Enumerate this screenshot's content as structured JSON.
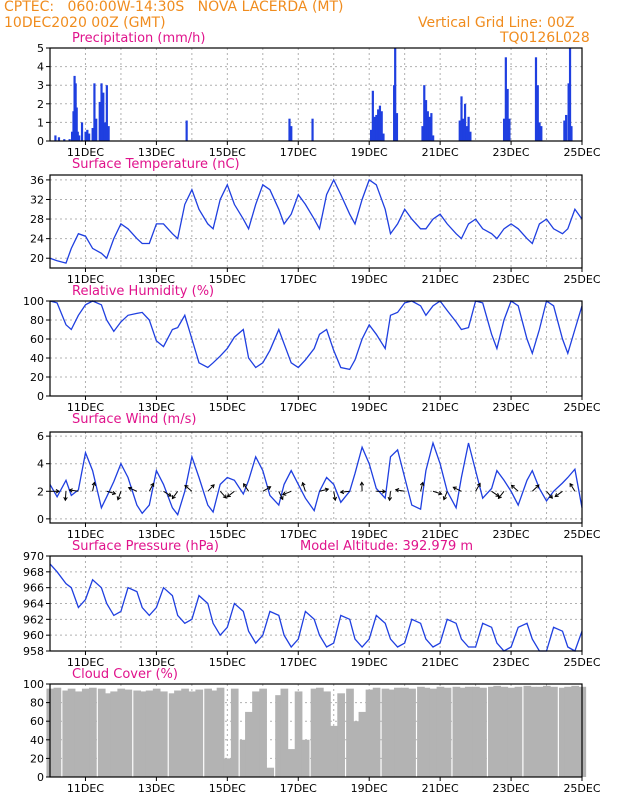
{
  "header": {
    "line1_left": "CPTEC:   060:00W-14:30S   NOVA LACERDA (MT)",
    "line2_left": "10DEC2020 00Z (GMT)",
    "line2_right": "Vertical Grid Line: 00Z",
    "line3_right": "TQ0126L028"
  },
  "colors": {
    "header": "#f08c1e",
    "title": "#e0138c",
    "series": "#1f3fe0",
    "cloud": "#b3b3b3",
    "arrow": "#000000"
  },
  "chart_data": [
    {
      "type": "bar",
      "title": "Precipitation (mm/h)",
      "x_start": "10DEC2020",
      "xlim_days": [
        0,
        15
      ],
      "ylim": [
        0,
        5
      ],
      "yticks": [
        0,
        1,
        2,
        3,
        4,
        5
      ],
      "xticks": [
        "11DEC",
        "13DEC",
        "15DEC",
        "17DEC",
        "19DEC",
        "21DEC",
        "23DEC",
        "25DEC"
      ],
      "bars": [
        [
          0.15,
          0.3
        ],
        [
          0.25,
          0.2
        ],
        [
          0.4,
          0.1
        ],
        [
          0.55,
          0.1
        ],
        [
          0.62,
          0.5
        ],
        [
          0.66,
          1.6
        ],
        [
          0.69,
          3.5
        ],
        [
          0.72,
          3.1
        ],
        [
          0.75,
          1.8
        ],
        [
          0.78,
          0.5
        ],
        [
          0.82,
          0.3
        ],
        [
          0.9,
          1.0
        ],
        [
          1.0,
          0.5
        ],
        [
          1.05,
          0.6
        ],
        [
          1.1,
          0.4
        ],
        [
          1.2,
          0.7
        ],
        [
          1.25,
          3.1
        ],
        [
          1.3,
          1.2
        ],
        [
          1.4,
          2.1
        ],
        [
          1.45,
          3.1
        ],
        [
          1.5,
          2.6
        ],
        [
          1.55,
          1.0
        ],
        [
          1.6,
          3.0
        ],
        [
          1.65,
          0.8
        ],
        [
          3.85,
          1.1
        ],
        [
          6.75,
          1.2
        ],
        [
          6.8,
          0.8
        ],
        [
          7.4,
          1.2
        ],
        [
          9.05,
          0.6
        ],
        [
          9.1,
          2.7
        ],
        [
          9.15,
          1.3
        ],
        [
          9.2,
          1.4
        ],
        [
          9.25,
          1.7
        ],
        [
          9.3,
          1.9
        ],
        [
          9.35,
          1.6
        ],
        [
          9.4,
          0.4
        ],
        [
          9.7,
          3.0
        ],
        [
          9.73,
          5.0
        ],
        [
          9.78,
          1.5
        ],
        [
          10.5,
          0.8
        ],
        [
          10.55,
          3.0
        ],
        [
          10.6,
          2.2
        ],
        [
          10.65,
          1.6
        ],
        [
          10.7,
          1.3
        ],
        [
          10.75,
          1.5
        ],
        [
          10.8,
          0.3
        ],
        [
          11.55,
          1.1
        ],
        [
          11.6,
          2.4
        ],
        [
          11.65,
          1.2
        ],
        [
          11.7,
          2.0
        ],
        [
          11.75,
          0.8
        ],
        [
          11.8,
          1.3
        ],
        [
          11.85,
          0.5
        ],
        [
          12.8,
          1.2
        ],
        [
          12.85,
          4.5
        ],
        [
          12.9,
          2.8
        ],
        [
          12.95,
          1.2
        ],
        [
          13.7,
          4.5
        ],
        [
          13.75,
          3.0
        ],
        [
          13.8,
          1.0
        ],
        [
          13.85,
          0.8
        ],
        [
          14.5,
          1.1
        ],
        [
          14.55,
          1.4
        ],
        [
          14.62,
          3.1
        ],
        [
          14.66,
          5.0
        ],
        [
          14.7,
          0.8
        ]
      ]
    },
    {
      "type": "line",
      "title": "Surface Temperature (nC)",
      "x_start": "10DEC2020",
      "xlim_days": [
        0,
        15
      ],
      "ylim": [
        18,
        37
      ],
      "yticks": [
        20,
        24,
        28,
        32,
        36
      ],
      "xticks": [
        "11DEC",
        "13DEC",
        "15DEC",
        "17DEC",
        "19DEC",
        "21DEC",
        "23DEC",
        "25DEC"
      ],
      "x": [
        0,
        0.2,
        0.45,
        0.6,
        0.8,
        1.0,
        1.2,
        1.45,
        1.6,
        1.8,
        2.0,
        2.2,
        2.45,
        2.6,
        2.8,
        3.0,
        3.2,
        3.45,
        3.6,
        3.8,
        4.0,
        4.2,
        4.45,
        4.6,
        4.8,
        5.0,
        5.2,
        5.45,
        5.6,
        5.8,
        6.0,
        6.2,
        6.45,
        6.6,
        6.8,
        7.0,
        7.2,
        7.45,
        7.6,
        7.8,
        8.0,
        8.2,
        8.45,
        8.6,
        8.8,
        9.0,
        9.2,
        9.45,
        9.6,
        9.8,
        10.0,
        10.2,
        10.45,
        10.6,
        10.8,
        11.0,
        11.2,
        11.45,
        11.6,
        11.8,
        12.0,
        12.2,
        12.45,
        12.6,
        12.8,
        13.0,
        13.2,
        13.45,
        13.6,
        13.8,
        14.0,
        14.2,
        14.45,
        14.6,
        14.8,
        15.0
      ],
      "y": [
        20,
        19.5,
        19,
        22,
        25,
        24.5,
        22,
        21,
        20,
        24,
        27,
        26,
        24,
        23,
        23,
        27,
        27,
        25,
        24,
        31,
        34,
        30,
        27,
        26,
        32,
        35,
        31,
        28,
        26,
        31,
        35,
        34,
        30,
        27,
        29,
        33,
        31,
        28,
        26,
        33,
        36,
        33,
        29,
        27,
        32,
        36,
        35,
        30,
        25,
        27,
        30,
        28,
        26,
        26,
        28,
        29,
        27,
        25,
        24,
        27,
        28,
        26,
        25,
        24,
        26,
        27,
        26,
        24,
        23,
        27,
        28,
        26,
        25,
        26,
        30,
        28
      ]
    },
    {
      "type": "line",
      "title": "Relative Humidity (%)",
      "x_start": "10DEC2020",
      "xlim_days": [
        0,
        15
      ],
      "ylim": [
        0,
        100
      ],
      "yticks": [
        0,
        20,
        40,
        60,
        80,
        100
      ],
      "xticks": [
        "11DEC",
        "13DEC",
        "15DEC",
        "17DEC",
        "19DEC",
        "21DEC",
        "23DEC",
        "25DEC"
      ],
      "x": [
        0,
        0.2,
        0.45,
        0.6,
        0.8,
        1.0,
        1.2,
        1.45,
        1.6,
        1.8,
        2.0,
        2.2,
        2.45,
        2.6,
        2.8,
        3.0,
        3.2,
        3.45,
        3.6,
        3.8,
        4.0,
        4.2,
        4.45,
        4.6,
        4.8,
        5.0,
        5.2,
        5.45,
        5.6,
        5.8,
        6.0,
        6.2,
        6.45,
        6.6,
        6.8,
        7.0,
        7.2,
        7.45,
        7.6,
        7.8,
        8.0,
        8.2,
        8.45,
        8.6,
        8.8,
        9.0,
        9.2,
        9.45,
        9.6,
        9.8,
        10.0,
        10.2,
        10.45,
        10.6,
        10.8,
        11.0,
        11.2,
        11.45,
        11.6,
        11.8,
        12.0,
        12.2,
        12.45,
        12.6,
        12.8,
        13.0,
        13.2,
        13.45,
        13.6,
        13.8,
        14.0,
        14.2,
        14.45,
        14.6,
        14.8,
        15.0
      ],
      "y": [
        100,
        98,
        75,
        70,
        85,
        96,
        100,
        96,
        80,
        68,
        78,
        85,
        87,
        88,
        80,
        58,
        52,
        70,
        72,
        85,
        60,
        35,
        30,
        35,
        42,
        50,
        62,
        70,
        40,
        30,
        35,
        48,
        70,
        55,
        35,
        30,
        38,
        50,
        65,
        70,
        48,
        30,
        28,
        38,
        60,
        75,
        65,
        50,
        85,
        88,
        98,
        100,
        95,
        85,
        95,
        100,
        90,
        78,
        70,
        72,
        100,
        98,
        65,
        50,
        80,
        100,
        95,
        60,
        45,
        70,
        100,
        95,
        60,
        45,
        70,
        95
      ]
    },
    {
      "type": "line",
      "title": "Surface Wind (m/s)",
      "x_start": "10DEC2020",
      "xlim_days": [
        0,
        15
      ],
      "ylim": [
        -0.3,
        6.3
      ],
      "yticks": [
        0,
        2,
        4,
        6
      ],
      "xticks": [
        "11DEC",
        "13DEC",
        "15DEC",
        "17DEC",
        "19DEC",
        "21DEC",
        "23DEC",
        "25DEC"
      ],
      "x": [
        0,
        0.2,
        0.45,
        0.6,
        0.8,
        1.0,
        1.2,
        1.45,
        1.6,
        1.8,
        2.0,
        2.2,
        2.45,
        2.6,
        2.8,
        3.0,
        3.2,
        3.45,
        3.6,
        3.8,
        4.0,
        4.2,
        4.45,
        4.6,
        4.8,
        5.0,
        5.2,
        5.45,
        5.6,
        5.8,
        6.0,
        6.2,
        6.45,
        6.6,
        6.8,
        7.0,
        7.2,
        7.45,
        7.6,
        7.8,
        8.0,
        8.2,
        8.45,
        8.6,
        8.8,
        9.0,
        9.2,
        9.45,
        9.6,
        9.8,
        10.0,
        10.2,
        10.45,
        10.6,
        10.8,
        11.0,
        11.2,
        11.45,
        11.6,
        11.8,
        12.0,
        12.2,
        12.45,
        12.6,
        12.8,
        13.0,
        13.2,
        13.45,
        13.6,
        13.8,
        14.0,
        14.2,
        14.45,
        14.6,
        14.8,
        15.0
      ],
      "y": [
        2.5,
        1.6,
        2.8,
        1.7,
        2.1,
        4.8,
        3.5,
        0.8,
        1.6,
        2.7,
        4.0,
        3.0,
        1.0,
        0.4,
        1.0,
        3.5,
        2.5,
        0.8,
        0.3,
        2.0,
        4.5,
        3.0,
        1.0,
        0.5,
        2.5,
        3.0,
        2.8,
        1.8,
        2.8,
        4.5,
        3.5,
        1.7,
        1.0,
        2.5,
        3.5,
        2.5,
        1.5,
        0.6,
        2.0,
        3.0,
        2.5,
        1.2,
        2.0,
        3.3,
        5.2,
        4.0,
        2.2,
        1.5,
        4.5,
        5.0,
        3.0,
        1.0,
        0.7,
        3.5,
        5.5,
        4.0,
        2.0,
        0.8,
        3.0,
        5.5,
        3.5,
        1.5,
        2.2,
        3.5,
        2.8,
        2.0,
        1.0,
        2.8,
        3.5,
        2.2,
        1.3,
        2.0,
        2.6,
        3.0,
        3.6,
        0.8
      ]
    },
    {
      "type": "line",
      "title": "Surface Pressure (hPa)",
      "annotation": "Model Altitude: 392.979 m",
      "x_start": "10DEC2020",
      "xlim_days": [
        0,
        15
      ],
      "ylim": [
        958,
        970
      ],
      "yticks": [
        958,
        960,
        962,
        964,
        966,
        968,
        970
      ],
      "xticks": [
        "11DEC",
        "13DEC",
        "15DEC",
        "17DEC",
        "19DEC",
        "21DEC",
        "23DEC",
        "25DEC"
      ],
      "x": [
        0,
        0.2,
        0.45,
        0.6,
        0.8,
        1.0,
        1.2,
        1.45,
        1.6,
        1.8,
        2.0,
        2.2,
        2.45,
        2.6,
        2.8,
        3.0,
        3.2,
        3.45,
        3.6,
        3.8,
        4.0,
        4.2,
        4.45,
        4.6,
        4.8,
        5.0,
        5.2,
        5.45,
        5.6,
        5.8,
        6.0,
        6.2,
        6.45,
        6.6,
        6.8,
        7.0,
        7.2,
        7.45,
        7.6,
        7.8,
        8.0,
        8.2,
        8.45,
        8.6,
        8.8,
        9.0,
        9.2,
        9.45,
        9.6,
        9.8,
        10.0,
        10.2,
        10.45,
        10.6,
        10.8,
        11.0,
        11.2,
        11.45,
        11.6,
        11.8,
        12.0,
        12.2,
        12.45,
        12.6,
        12.8,
        13.0,
        13.2,
        13.45,
        13.6,
        13.8,
        14.0,
        14.2,
        14.45,
        14.6,
        14.8,
        15.0
      ],
      "y": [
        969,
        968,
        966.5,
        966,
        963.5,
        964.5,
        967,
        966,
        964,
        962.5,
        963,
        966,
        965.5,
        963.5,
        962.5,
        963.5,
        966,
        965,
        962.5,
        961.5,
        962,
        965,
        964,
        961.5,
        960,
        961,
        964,
        963,
        960.5,
        959,
        960,
        963,
        962.5,
        960,
        958.5,
        959.5,
        963,
        962,
        960,
        958.5,
        959,
        962.5,
        962,
        959.5,
        958.5,
        959.5,
        962.5,
        961.5,
        959.5,
        958.5,
        959,
        962,
        961.5,
        959.5,
        958.5,
        959,
        962,
        961.5,
        959.5,
        958.5,
        958.5,
        961.5,
        961,
        959,
        958,
        958.5,
        961,
        961.5,
        959.5,
        958,
        958,
        961,
        960.5,
        958.5,
        958,
        960.5
      ]
    },
    {
      "type": "bar",
      "title": "Cloud Cover (%)",
      "x_start": "10DEC2020",
      "xlim_days": [
        0,
        15
      ],
      "ylim": [
        0,
        100
      ],
      "yticks": [
        0,
        20,
        40,
        60,
        80,
        100
      ],
      "xticks": [
        "11DEC",
        "13DEC",
        "15DEC",
        "17DEC",
        "19DEC",
        "21DEC",
        "23DEC",
        "25DEC"
      ],
      "x": [
        0,
        0.2,
        0.45,
        0.6,
        0.8,
        1.0,
        1.2,
        1.45,
        1.6,
        1.8,
        2.0,
        2.2,
        2.45,
        2.6,
        2.8,
        3.0,
        3.2,
        3.45,
        3.6,
        3.8,
        4.0,
        4.2,
        4.45,
        4.6,
        4.8,
        5.0,
        5.2,
        5.45,
        5.6,
        5.8,
        6.0,
        6.2,
        6.45,
        6.6,
        6.8,
        7.0,
        7.2,
        7.45,
        7.6,
        7.8,
        8.0,
        8.2,
        8.45,
        8.6,
        8.8,
        9.0,
        9.2,
        9.45,
        9.6,
        9.8,
        10.0,
        10.2,
        10.45,
        10.6,
        10.8,
        11.0,
        11.2,
        11.45,
        11.6,
        11.8,
        12.0,
        12.2,
        12.45,
        12.6,
        12.8,
        13.0,
        13.2,
        13.45,
        13.6,
        13.8,
        14.0,
        14.2,
        14.45,
        14.6,
        14.8,
        15.0
      ],
      "values": [
        95,
        96,
        93,
        95,
        92,
        95,
        96,
        95,
        90,
        92,
        95,
        94,
        93,
        92,
        93,
        95,
        92,
        90,
        93,
        95,
        92,
        94,
        95,
        93,
        96,
        20,
        95,
        40,
        70,
        92,
        95,
        10,
        88,
        95,
        30,
        92,
        40,
        95,
        96,
        92,
        55,
        90,
        95,
        60,
        70,
        94,
        96,
        95,
        94,
        96,
        96,
        95,
        97,
        96,
        95,
        97,
        96,
        97,
        96,
        97,
        97,
        96,
        97,
        98,
        97,
        96,
        97,
        98,
        97,
        97,
        98,
        97,
        96,
        97,
        98,
        97
      ]
    }
  ]
}
